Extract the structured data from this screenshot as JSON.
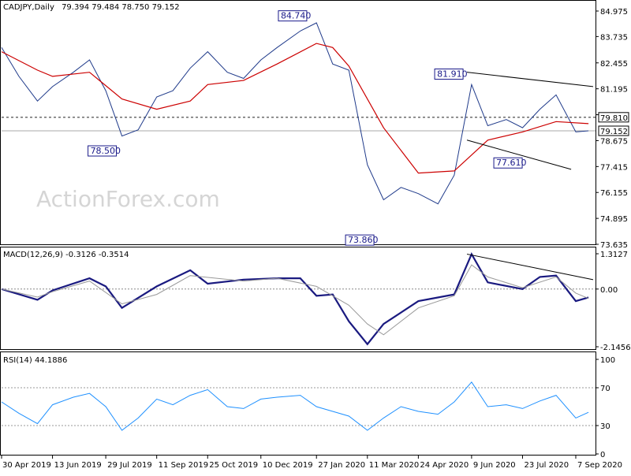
{
  "chart_data": {
    "type": "line",
    "symbol": "CADJPY,Daily",
    "ohlc_header": "79.394 79.484 78.750 79.152",
    "watermark": "ActionForex.com",
    "x_ticks": [
      "30 Apr 2019",
      "13 Jun 2019",
      "29 Jul 2019",
      "11 Sep 2019",
      "25 Oct 2019",
      "10 Dec 2019",
      "27 Jan 2020",
      "11 Mar 2020",
      "24 Apr 2020",
      "9 Jun 2020",
      "23 Jul 2020",
      "7 Sep 2020"
    ],
    "price_panel": {
      "y_ticks": [
        "84.975",
        "83.735",
        "82.455",
        "81.195",
        "79.935",
        "78.675",
        "77.415",
        "76.155",
        "74.895",
        "73.635"
      ],
      "ylim": [
        73.635,
        84.975
      ],
      "price_tag": "79.152",
      "level_tag": "79.810",
      "levels": [
        79.81,
        79.152
      ],
      "annotations": [
        {
          "label": "84.740",
          "x": "Jan 2020",
          "y": 84.74
        },
        {
          "label": "81.910",
          "x": "Jun 2020",
          "y": 81.91
        },
        {
          "label": "78.500",
          "x": "Aug 2019",
          "y": 78.5
        },
        {
          "label": "77.610",
          "x": "Jul 2020",
          "y": 77.61
        },
        {
          "label": "73.860",
          "x": "Mar 2020",
          "y": 73.86
        }
      ],
      "series": [
        {
          "name": "",
          "color": "#1f3a8a",
          "kind": "price",
          "x": [
            "2019-04-30",
            "2019-05-15",
            "2019-05-31",
            "2019-06-13",
            "2019-07-01",
            "2019-07-15",
            "2019-07-29",
            "2019-08-12",
            "2019-08-26",
            "2019-09-11",
            "2019-09-25",
            "2019-10-10",
            "2019-10-25",
            "2019-11-11",
            "2019-11-25",
            "2019-12-10",
            "2019-12-24",
            "2020-01-13",
            "2020-01-27",
            "2020-02-10",
            "2020-02-24",
            "2020-03-11",
            "2020-03-25",
            "2020-04-09",
            "2020-04-24",
            "2020-05-11",
            "2020-05-25",
            "2020-06-09",
            "2020-06-23",
            "2020-07-09",
            "2020-07-23",
            "2020-08-07",
            "2020-08-21",
            "2020-09-07",
            "2020-09-18"
          ],
          "values": [
            83.2,
            81.8,
            80.6,
            81.3,
            82.0,
            82.6,
            81.1,
            78.9,
            79.2,
            80.8,
            81.1,
            82.2,
            83.0,
            82.0,
            81.7,
            82.6,
            83.2,
            84.0,
            84.4,
            82.4,
            82.1,
            77.5,
            75.8,
            76.4,
            76.1,
            75.6,
            77.0,
            81.4,
            79.4,
            79.7,
            79.3,
            80.2,
            80.9,
            79.1,
            79.15
          ]
        },
        {
          "name": "",
          "color": "#cc0000",
          "kind": "ma",
          "x": [
            "2019-04-30",
            "2019-05-31",
            "2019-06-13",
            "2019-07-15",
            "2019-08-12",
            "2019-09-11",
            "2019-10-10",
            "2019-10-25",
            "2019-11-25",
            "2019-12-24",
            "2020-01-27",
            "2020-02-10",
            "2020-02-24",
            "2020-03-25",
            "2020-04-24",
            "2020-05-25",
            "2020-06-23",
            "2020-07-23",
            "2020-08-21",
            "2020-09-18"
          ],
          "values": [
            83.0,
            82.1,
            81.8,
            82.0,
            80.7,
            80.2,
            80.6,
            81.4,
            81.6,
            82.4,
            83.4,
            83.2,
            82.3,
            79.3,
            77.1,
            77.2,
            78.7,
            79.1,
            79.6,
            79.5
          ]
        }
      ],
      "trendlines": [
        {
          "x": [
            "2020-06-05",
            "2020-09-22"
          ],
          "values": [
            82.0,
            81.3
          ]
        },
        {
          "x": [
            "2020-06-05",
            "2020-09-03"
          ],
          "values": [
            78.7,
            77.28
          ]
        }
      ]
    },
    "macd_panel": {
      "header": "MACD(12,26,9) -0.3126 -0.3514",
      "y_ticks": [
        "1.3127",
        "0.00",
        "-2.1456"
      ],
      "ylim": [
        -2.1456,
        1.3127
      ],
      "series": [
        {
          "name": "",
          "color": "#1a1a80",
          "kind": "macd",
          "x": [
            "2019-04-30",
            "2019-05-31",
            "2019-06-13",
            "2019-07-15",
            "2019-07-29",
            "2019-08-12",
            "2019-09-11",
            "2019-10-10",
            "2019-10-25",
            "2019-11-25",
            "2019-12-24",
            "2020-01-13",
            "2020-01-27",
            "2020-02-10",
            "2020-02-24",
            "2020-03-11",
            "2020-03-25",
            "2020-04-24",
            "2020-05-25",
            "2020-06-09",
            "2020-06-23",
            "2020-07-23",
            "2020-08-07",
            "2020-08-21",
            "2020-09-07",
            "2020-09-18"
          ],
          "values": [
            0.0,
            -0.4,
            -0.05,
            0.4,
            0.1,
            -0.7,
            0.1,
            0.7,
            0.2,
            0.35,
            0.4,
            0.4,
            -0.25,
            -0.2,
            -1.2,
            -2.05,
            -1.3,
            -0.45,
            -0.2,
            1.3,
            0.25,
            0.0,
            0.45,
            0.5,
            -0.45,
            -0.31
          ]
        },
        {
          "name": "",
          "color": "#999999",
          "kind": "signal",
          "x": [
            "2019-04-30",
            "2019-05-31",
            "2019-06-13",
            "2019-07-15",
            "2019-08-12",
            "2019-09-11",
            "2019-10-10",
            "2019-11-25",
            "2019-12-24",
            "2020-01-27",
            "2020-02-24",
            "2020-03-11",
            "2020-03-25",
            "2020-04-24",
            "2020-05-25",
            "2020-06-09",
            "2020-06-23",
            "2020-07-23",
            "2020-08-21",
            "2020-09-07",
            "2020-09-18"
          ],
          "values": [
            0.0,
            -0.3,
            -0.1,
            0.3,
            -0.55,
            -0.2,
            0.5,
            0.3,
            0.4,
            0.1,
            -0.6,
            -1.3,
            -1.7,
            -0.7,
            -0.25,
            0.9,
            0.45,
            0.05,
            0.45,
            -0.15,
            -0.35
          ]
        }
      ],
      "trendline": {
        "x": [
          "2020-06-05",
          "2020-09-22"
        ],
        "values": [
          1.3,
          0.35
        ]
      }
    },
    "rsi_panel": {
      "header": "RSI(14) 44.1886",
      "y_ticks": [
        "100",
        "70",
        "30",
        "0"
      ],
      "ylim": [
        0,
        100
      ],
      "levels": [
        70,
        30
      ],
      "series": [
        {
          "name": "",
          "color": "#1e90ff",
          "kind": "rsi",
          "x": [
            "2019-04-30",
            "2019-05-15",
            "2019-05-31",
            "2019-06-13",
            "2019-07-01",
            "2019-07-15",
            "2019-07-29",
            "2019-08-12",
            "2019-08-26",
            "2019-09-11",
            "2019-09-25",
            "2019-10-10",
            "2019-10-25",
            "2019-11-11",
            "2019-11-25",
            "2019-12-10",
            "2019-12-24",
            "2020-01-13",
            "2020-01-27",
            "2020-02-10",
            "2020-02-24",
            "2020-03-11",
            "2020-03-25",
            "2020-04-09",
            "2020-04-24",
            "2020-05-11",
            "2020-05-25",
            "2020-06-09",
            "2020-06-23",
            "2020-07-09",
            "2020-07-23",
            "2020-08-07",
            "2020-08-21",
            "2020-09-07",
            "2020-09-18"
          ],
          "values": [
            55,
            43,
            32,
            52,
            60,
            64,
            50,
            25,
            38,
            58,
            52,
            62,
            68,
            50,
            48,
            58,
            60,
            62,
            50,
            45,
            40,
            25,
            38,
            50,
            45,
            42,
            55,
            76,
            50,
            52,
            48,
            56,
            62,
            38,
            44
          ]
        }
      ]
    }
  }
}
